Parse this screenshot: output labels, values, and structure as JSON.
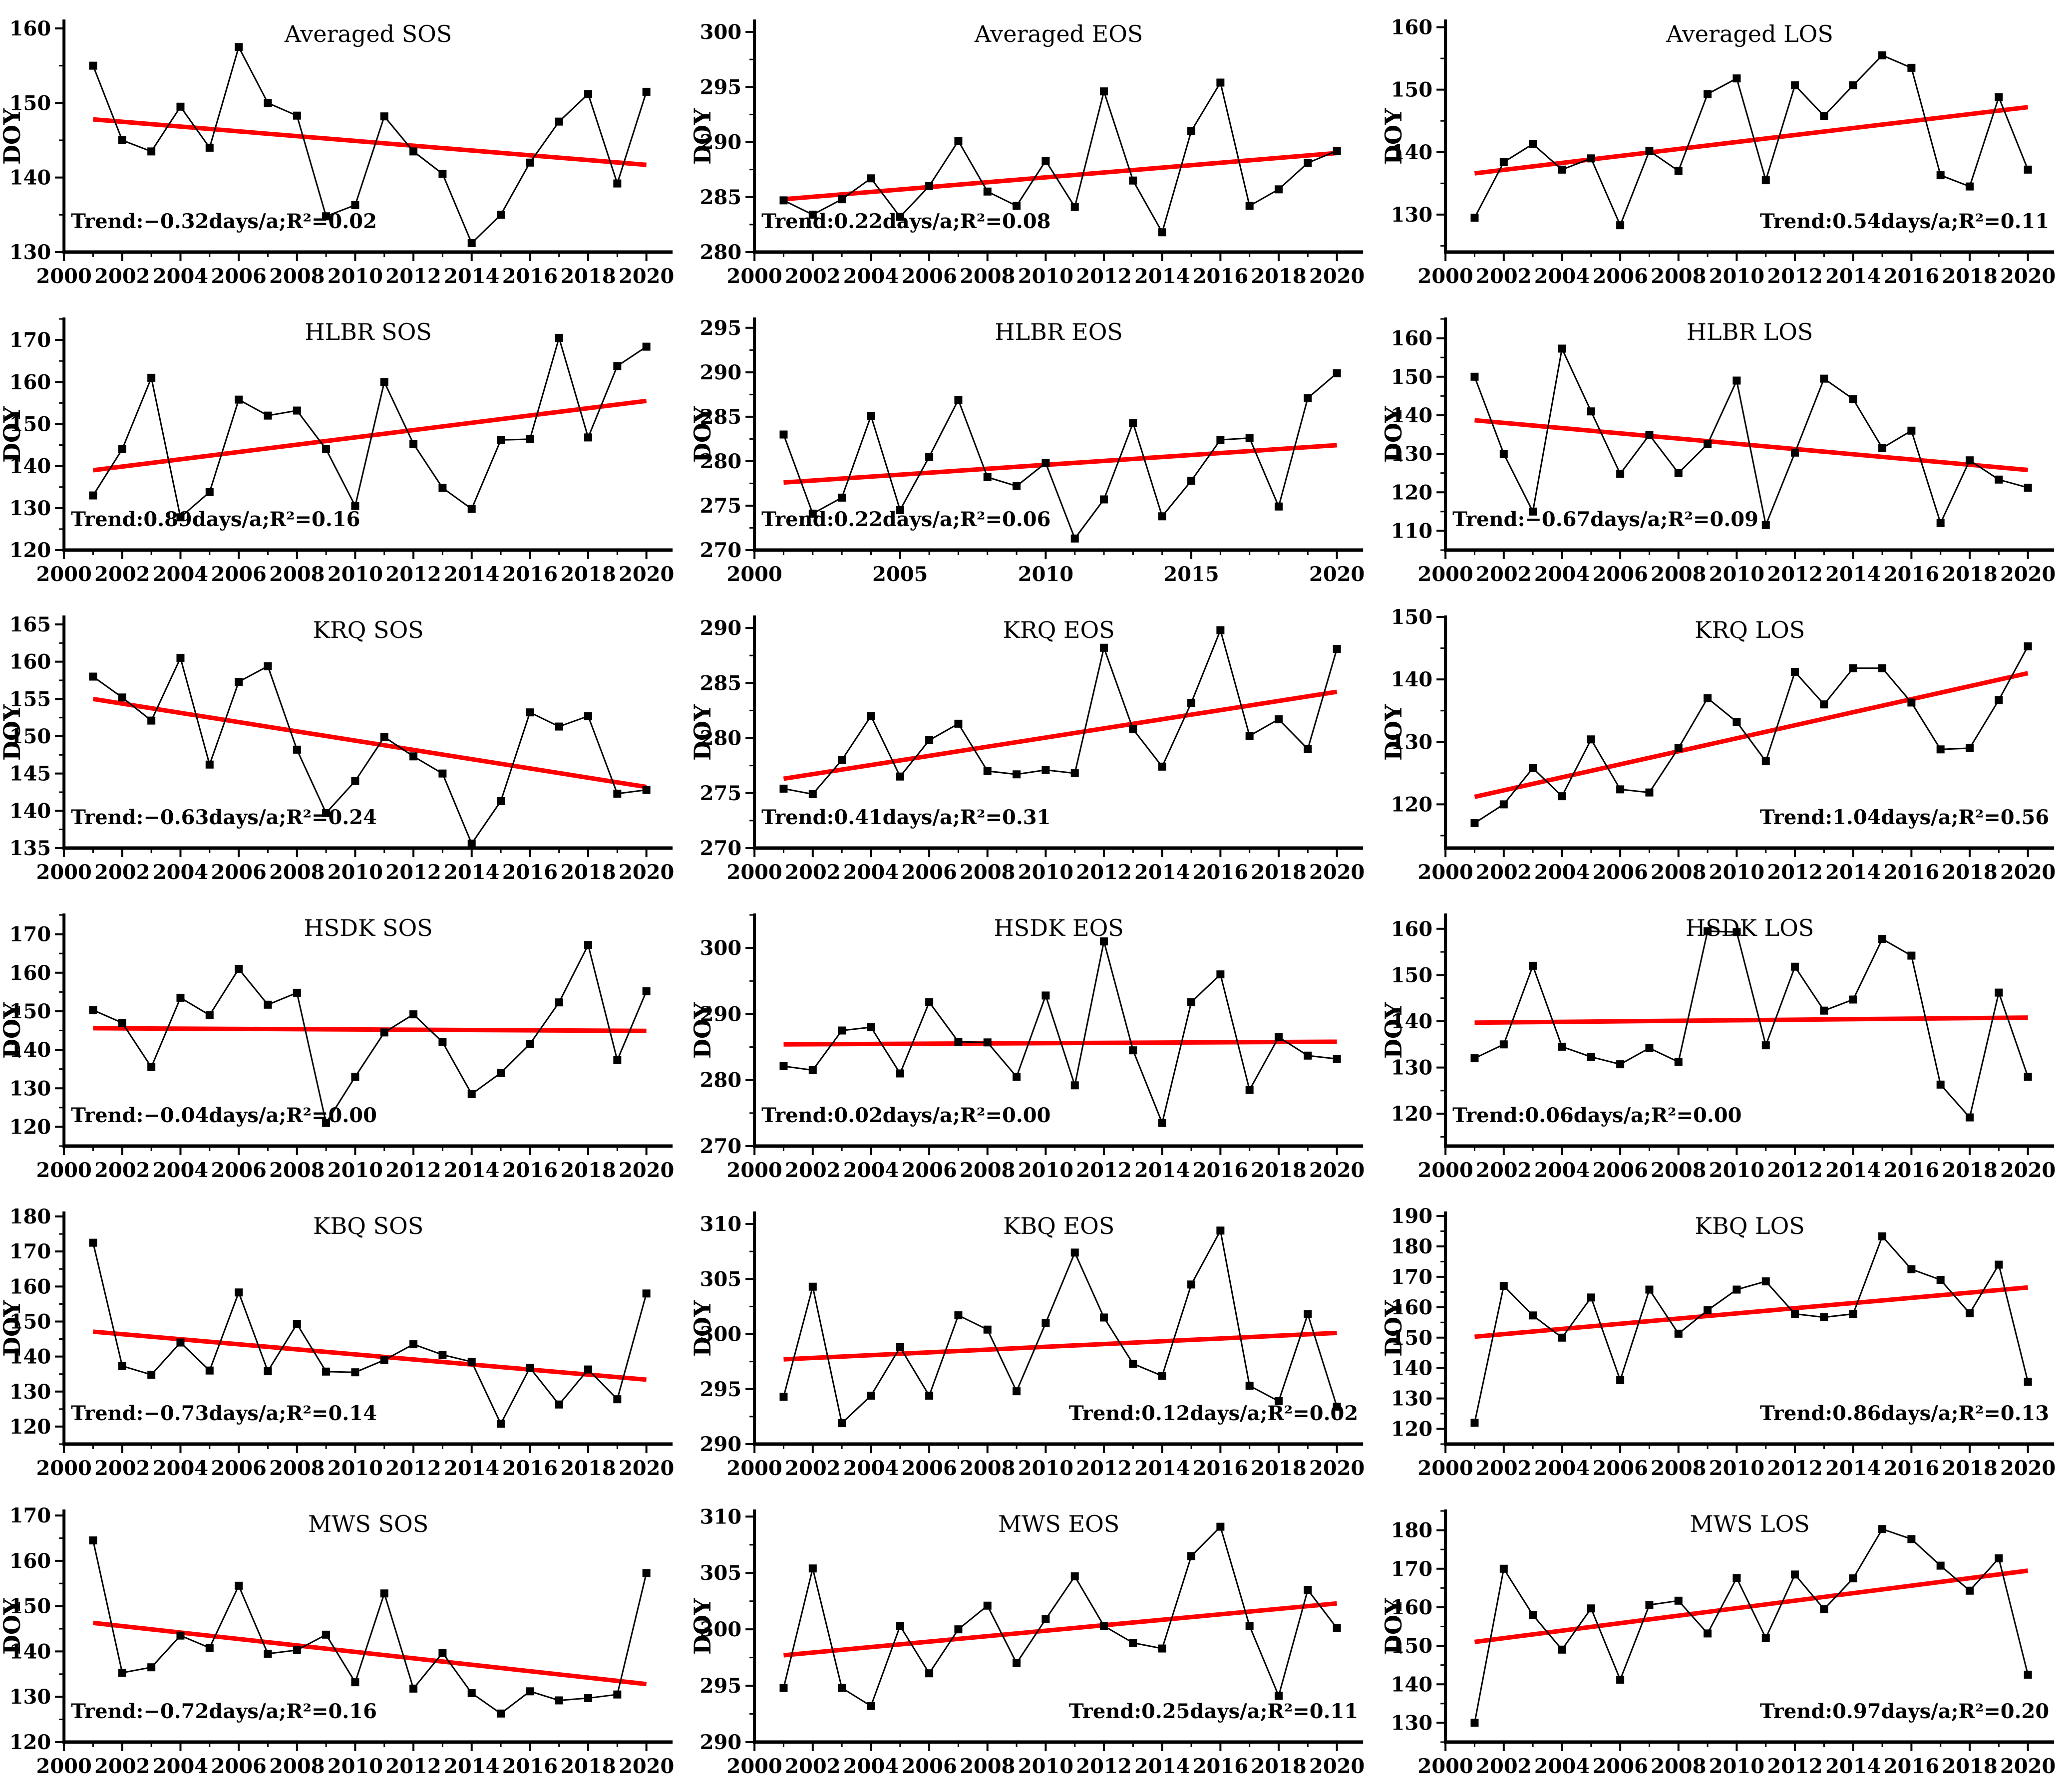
{
  "figure": {
    "ylabel": "DOY",
    "colors": {
      "series": "#000000",
      "trend_line": "#ff0000",
      "text": "#000000",
      "background": "#ffffff"
    },
    "rows": [
      "Averaged",
      "HLBR",
      "KRQ",
      "HSDK",
      "KBQ",
      "MWS"
    ],
    "columns": [
      "SOS",
      "EOS",
      "LOS"
    ]
  },
  "chart_data": {
    "type": "line",
    "x_years": [
      2001,
      2002,
      2003,
      2004,
      2005,
      2006,
      2007,
      2008,
      2009,
      2010,
      2011,
      2012,
      2013,
      2014,
      2015,
      2016,
      2017,
      2018,
      2019,
      2020
    ],
    "x_axis": {
      "lim": [
        2000,
        2020.9
      ]
    },
    "marker": "square",
    "grid": "off",
    "charts": [
      {
        "name": "averaged-sos",
        "title": "Averaged SOS",
        "ylabel": "DOY",
        "values": [
          155,
          145,
          143.5,
          149.5,
          144,
          157.5,
          150,
          148.3,
          134.8,
          136.3,
          148.2,
          143.5,
          140.5,
          131.2,
          135,
          142,
          147.5,
          151.2,
          139.2,
          151.5
        ],
        "ylim": [
          130,
          161
        ],
        "yticks": [
          130,
          140,
          150,
          160
        ],
        "xticks": [
          2000,
          2002,
          2004,
          2006,
          2008,
          2010,
          2012,
          2014,
          2016,
          2018,
          2020
        ],
        "trend": {
          "start": 147.8,
          "end": 141.7,
          "text": "Trend:−0.32days/a;R²=0.02",
          "position": "left"
        }
      },
      {
        "name": "averaged-eos",
        "title": "Averaged EOS",
        "ylabel": "DOY",
        "values": [
          284.7,
          283.4,
          284.8,
          286.7,
          283.2,
          286,
          290.1,
          285.5,
          284.2,
          288.3,
          284.1,
          294.6,
          286.5,
          281.8,
          291,
          295.4,
          284.2,
          285.7,
          288.1,
          289.2
        ],
        "ylim": [
          280,
          301
        ],
        "yticks": [
          280,
          285,
          290,
          295,
          300
        ],
        "xticks": [
          2000,
          2002,
          2004,
          2006,
          2008,
          2010,
          2012,
          2014,
          2016,
          2018,
          2020
        ],
        "trend": {
          "start": 284.8,
          "end": 289.0,
          "text": "Trend:0.22days/a;R²=0.08",
          "position": "left"
        }
      },
      {
        "name": "averaged-los",
        "title": "Averaged LOS",
        "ylabel": "DOY",
        "values": [
          129.5,
          138.4,
          141.3,
          137.2,
          139,
          128.3,
          140.2,
          137,
          149.3,
          151.8,
          135.5,
          150.7,
          145.8,
          150.7,
          155.5,
          153.5,
          136.3,
          134.5,
          148.8,
          137.2
        ],
        "ylim": [
          124,
          161
        ],
        "yticks": [
          130,
          140,
          150,
          160
        ],
        "xticks": [
          2000,
          2002,
          2004,
          2006,
          2008,
          2010,
          2012,
          2014,
          2016,
          2018,
          2020
        ],
        "trend": {
          "start": 136.6,
          "end": 147.2,
          "text": "Trend:0.54days/a;R²=0.11",
          "position": "right"
        }
      },
      {
        "name": "hlbr-sos",
        "title": "HLBR SOS",
        "ylabel": "DOY",
        "values": [
          133,
          144,
          161,
          127.8,
          133.8,
          155.8,
          152,
          153.2,
          144,
          130.5,
          160,
          145.3,
          134.8,
          129.8,
          146.2,
          146.4,
          170.5,
          146.8,
          163.8,
          168.4
        ],
        "ylim": [
          120,
          175
        ],
        "yticks": [
          120,
          130,
          140,
          150,
          160,
          170
        ],
        "xticks": [
          2000,
          2002,
          2004,
          2006,
          2008,
          2010,
          2012,
          2014,
          2016,
          2018,
          2020
        ],
        "trend": {
          "start": 139.0,
          "end": 155.5,
          "text": "Trend:0.89days/a;R²=0.16",
          "position": "left"
        }
      },
      {
        "name": "hlbr-eos",
        "title": "HLBR EOS",
        "ylabel": "DOY",
        "values": [
          283,
          274.1,
          275.9,
          285.1,
          274.5,
          280.5,
          286.9,
          278.2,
          277.2,
          279.8,
          271.3,
          275.7,
          284.3,
          273.8,
          277.8,
          282.4,
          282.6,
          274.9,
          287.1,
          289.9
        ],
        "ylim": [
          270,
          296
        ],
        "yticks": [
          270,
          275,
          280,
          285,
          290,
          295
        ],
        "xticks": [
          2000,
          2005,
          2010,
          2015,
          2020
        ],
        "trend": {
          "start": 277.6,
          "end": 281.8,
          "text": "Trend:0.22days/a;R²=0.06",
          "position": "left"
        }
      },
      {
        "name": "hlbr-los",
        "title": "HLBR LOS",
        "ylabel": "DOY",
        "values": [
          150,
          130,
          115,
          157.3,
          141,
          124.8,
          134.9,
          125,
          132.5,
          149,
          111.5,
          130.3,
          149.5,
          144.2,
          131.5,
          136,
          112,
          128.3,
          123.3,
          121.2
        ],
        "ylim": [
          105,
          165
        ],
        "yticks": [
          110,
          120,
          130,
          140,
          150,
          160
        ],
        "xticks": [
          2000,
          2002,
          2004,
          2006,
          2008,
          2010,
          2012,
          2014,
          2016,
          2018,
          2020
        ],
        "trend": {
          "start": 138.7,
          "end": 125.8,
          "text": "Trend:−0.67days/a;R²=0.09",
          "position": "left"
        }
      },
      {
        "name": "krq-sos",
        "title": "KRQ SOS",
        "ylabel": "DOY",
        "values": [
          158,
          155.2,
          152.1,
          160.5,
          146.2,
          157.3,
          159.4,
          148.2,
          139.7,
          144,
          149.9,
          147.3,
          145,
          135.6,
          141.3,
          153.2,
          151.3,
          152.7,
          142.3,
          142.8
        ],
        "ylim": [
          135,
          166
        ],
        "yticks": [
          135,
          140,
          145,
          150,
          155,
          160,
          165
        ],
        "xticks": [
          2000,
          2002,
          2004,
          2006,
          2008,
          2010,
          2012,
          2014,
          2016,
          2018,
          2020
        ],
        "trend": {
          "start": 155.0,
          "end": 143.2,
          "text": "Trend:−0.63days/a;R²=0.24",
          "position": "left"
        }
      },
      {
        "name": "krq-eos",
        "title": "KRQ EOS",
        "ylabel": "DOY",
        "values": [
          275.4,
          274.9,
          278,
          282,
          276.5,
          279.8,
          281.3,
          277,
          276.7,
          277.1,
          276.8,
          288.2,
          280.8,
          277.4,
          283.2,
          289.8,
          280.2,
          281.7,
          279,
          288.1
        ],
        "ylim": [
          270,
          291
        ],
        "yticks": [
          270,
          275,
          280,
          285,
          290
        ],
        "xticks": [
          2000,
          2002,
          2004,
          2006,
          2008,
          2010,
          2012,
          2014,
          2016,
          2018,
          2020
        ],
        "trend": {
          "start": 276.3,
          "end": 284.2,
          "text": "Trend:0.41days/a;R²=0.31",
          "position": "left"
        }
      },
      {
        "name": "krq-los",
        "title": "KRQ LOS",
        "ylabel": "DOY",
        "values": [
          117,
          120,
          125.8,
          121.3,
          130.4,
          122.4,
          121.9,
          129,
          137,
          133.2,
          126.9,
          141.2,
          136,
          141.8,
          141.8,
          136.3,
          128.8,
          129,
          136.7,
          145.3
        ],
        "ylim": [
          113,
          150
        ],
        "yticks": [
          120,
          130,
          140,
          150
        ],
        "xticks": [
          2000,
          2002,
          2004,
          2006,
          2008,
          2010,
          2012,
          2014,
          2016,
          2018,
          2020
        ],
        "trend": {
          "start": 121.2,
          "end": 141.0,
          "text": "Trend:1.04days/a;R²=0.56",
          "position": "right"
        }
      },
      {
        "name": "hsdk-sos",
        "title": "HSDK SOS",
        "ylabel": "DOY",
        "values": [
          150.3,
          147,
          135.5,
          153.5,
          149,
          161,
          151.7,
          154.8,
          121,
          133,
          144.5,
          149.2,
          142,
          128.5,
          134,
          141.5,
          152.3,
          167.2,
          137.3,
          155.2
        ],
        "ylim": [
          115,
          175
        ],
        "yticks": [
          120,
          130,
          140,
          150,
          160,
          170
        ],
        "xticks": [
          2000,
          2002,
          2004,
          2006,
          2008,
          2010,
          2012,
          2014,
          2016,
          2018,
          2020
        ],
        "trend": {
          "start": 145.6,
          "end": 144.9,
          "text": "Trend:−0.04days/a;R²=0.00",
          "position": "left"
        }
      },
      {
        "name": "hsdk-eos",
        "title": "HSDK EOS",
        "ylabel": "DOY",
        "values": [
          282.1,
          281.5,
          287.5,
          288,
          281,
          291.8,
          285.8,
          285.7,
          280.5,
          292.8,
          279.2,
          301,
          284.5,
          273.5,
          291.8,
          296,
          278.5,
          286.5,
          283.7,
          283.2
        ],
        "ylim": [
          270,
          305
        ],
        "yticks": [
          270,
          280,
          290,
          300
        ],
        "xticks": [
          2000,
          2002,
          2004,
          2006,
          2008,
          2010,
          2012,
          2014,
          2016,
          2018,
          2020
        ],
        "trend": {
          "start": 285.4,
          "end": 285.8,
          "text": "Trend:0.02days/a;R²=0.00",
          "position": "left"
        }
      },
      {
        "name": "hsdk-los",
        "title": "HSDK LOS",
        "ylabel": "DOY",
        "values": [
          132,
          135,
          152,
          134.5,
          132.3,
          130.7,
          134.2,
          131.2,
          159.5,
          159.3,
          134.8,
          151.8,
          142.3,
          144.7,
          157.8,
          154.2,
          126.3,
          119.2,
          146.2,
          128
        ],
        "ylim": [
          113,
          163
        ],
        "yticks": [
          120,
          130,
          140,
          150,
          160
        ],
        "xticks": [
          2000,
          2002,
          2004,
          2006,
          2008,
          2010,
          2012,
          2014,
          2016,
          2018,
          2020
        ],
        "trend": {
          "start": 139.7,
          "end": 140.8,
          "text": "Trend:0.06days/a;R²=0.00",
          "position": "left"
        }
      },
      {
        "name": "kbq-sos",
        "title": "KBQ SOS",
        "ylabel": "DOY",
        "values": [
          172.5,
          137.3,
          134.8,
          144,
          136,
          158.3,
          135.8,
          149.3,
          135.7,
          135.5,
          139,
          143.5,
          140.5,
          138.5,
          120.8,
          136.8,
          126.3,
          136.3,
          127.8,
          158
        ],
        "ylim": [
          115,
          181
        ],
        "yticks": [
          120,
          130,
          140,
          150,
          160,
          170,
          180
        ],
        "xticks": [
          2000,
          2002,
          2004,
          2006,
          2008,
          2010,
          2012,
          2014,
          2016,
          2018,
          2020
        ],
        "trend": {
          "start": 147.1,
          "end": 133.4,
          "text": "Trend:−0.73days/a;R²=0.14",
          "position": "left"
        }
      },
      {
        "name": "kbq-eos",
        "title": "KBQ EOS",
        "ylabel": "DOY",
        "values": [
          294.3,
          304.3,
          291.9,
          294.4,
          298.8,
          294.4,
          301.7,
          300.4,
          294.8,
          301,
          307.4,
          301.5,
          297.3,
          296.2,
          304.5,
          309.4,
          295.3,
          293.9,
          301.8,
          293.4
        ],
        "ylim": [
          290,
          311
        ],
        "yticks": [
          290,
          295,
          300,
          305,
          310
        ],
        "xticks": [
          2000,
          2002,
          2004,
          2006,
          2008,
          2010,
          2012,
          2014,
          2016,
          2018,
          2020
        ],
        "trend": {
          "start": 297.7,
          "end": 300.1,
          "text": "Trend:0.12days/a;R²=0.02",
          "position": "right"
        }
      },
      {
        "name": "kbq-los",
        "title": "KBQ LOS",
        "ylabel": "DOY",
        "values": [
          122,
          167,
          157.3,
          150,
          163.2,
          136,
          165.8,
          151.3,
          159,
          165.8,
          168.5,
          157.8,
          156.7,
          157.8,
          183.3,
          172.5,
          169,
          158,
          174,
          135.5
        ],
        "ylim": [
          115,
          191
        ],
        "yticks": [
          120,
          130,
          140,
          150,
          160,
          170,
          180,
          190
        ],
        "xticks": [
          2000,
          2002,
          2004,
          2006,
          2008,
          2010,
          2012,
          2014,
          2016,
          2018,
          2020
        ],
        "trend": {
          "start": 150.3,
          "end": 166.5,
          "text": "Trend:0.86days/a;R²=0.13",
          "position": "right"
        }
      },
      {
        "name": "mws-sos",
        "title": "MWS SOS",
        "ylabel": "DOY",
        "values": [
          164.5,
          135.3,
          136.5,
          143.5,
          140.8,
          154.5,
          139.5,
          140.3,
          143.7,
          133.2,
          152.8,
          131.8,
          139.7,
          130.8,
          126.3,
          131.2,
          129.2,
          129.7,
          130.5,
          157.3
        ],
        "ylim": [
          120,
          171
        ],
        "yticks": [
          120,
          130,
          140,
          150,
          160,
          170
        ],
        "xticks": [
          2000,
          2002,
          2004,
          2006,
          2008,
          2010,
          2012,
          2014,
          2016,
          2018,
          2020
        ],
        "trend": {
          "start": 146.3,
          "end": 132.8,
          "text": "Trend:−0.72days/a;R²=0.16",
          "position": "left"
        }
      },
      {
        "name": "mws-eos",
        "title": "MWS EOS",
        "ylabel": "DOY",
        "values": [
          294.8,
          305.4,
          294.8,
          293.2,
          300.3,
          296.1,
          300,
          302.1,
          297,
          300.9,
          304.7,
          300.3,
          298.8,
          298.3,
          306.5,
          309.1,
          300.3,
          294.1,
          303.5,
          300.1
        ],
        "ylim": [
          290,
          310.5
        ],
        "yticks": [
          290,
          295,
          300,
          305,
          310
        ],
        "xticks": [
          2000,
          2002,
          2004,
          2006,
          2008,
          2010,
          2012,
          2014,
          2016,
          2018,
          2020
        ],
        "trend": {
          "start": 297.7,
          "end": 302.3,
          "text": "Trend:0.25days/a;R²=0.11",
          "position": "right"
        }
      },
      {
        "name": "mws-los",
        "title": "MWS LOS",
        "ylabel": "DOY",
        "values": [
          130,
          170,
          158,
          149,
          159.7,
          141.2,
          160.6,
          161.7,
          153.2,
          167.6,
          152,
          168.5,
          159.5,
          167.5,
          180.3,
          177.7,
          170.8,
          164.3,
          172.7,
          142.5
        ],
        "ylim": [
          125,
          185
        ],
        "yticks": [
          130,
          140,
          150,
          160,
          170,
          180
        ],
        "xticks": [
          2000,
          2002,
          2004,
          2006,
          2008,
          2010,
          2012,
          2014,
          2016,
          2018,
          2020
        ],
        "trend": {
          "start": 151.0,
          "end": 169.5,
          "text": "Trend:0.97days/a;R²=0.20",
          "position": "right"
        }
      }
    ]
  }
}
